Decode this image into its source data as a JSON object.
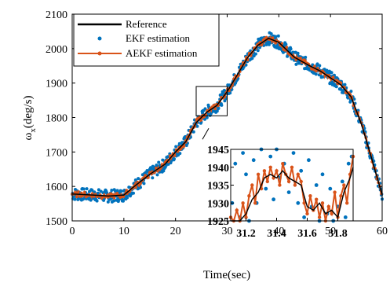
{
  "chart_data": [
    {
      "type": "line",
      "role": "main",
      "xlabel": "Time(sec)",
      "ylabel_symbol": "ω",
      "ylabel_subscript": "x",
      "ylabel_unit": "(deg/s)",
      "xlim": [
        0,
        60
      ],
      "ylim": [
        1500,
        2100
      ],
      "xticks": [
        0,
        10,
        20,
        30,
        40,
        50,
        60
      ],
      "yticks": [
        1500,
        1600,
        1700,
        1800,
        1900,
        2000,
        2100
      ],
      "xtick_labels": [
        "0",
        "10",
        "20",
        "30",
        "40",
        "50",
        "60"
      ],
      "ytick_labels": [
        "1500",
        "1600",
        "1700",
        "1800",
        "1900",
        "2000",
        "2100"
      ],
      "grid": false,
      "legend_position": "top-left",
      "zoom_box": {
        "x": [
          24,
          30
        ],
        "y": [
          1805,
          1890
        ]
      },
      "series": [
        {
          "name": "Reference",
          "style": "line",
          "color": "#000000",
          "x": [
            0,
            4,
            7,
            10,
            12,
            15,
            18,
            20,
            22,
            24,
            26,
            28,
            30,
            32,
            34,
            36,
            38,
            40,
            43,
            46,
            48,
            50,
            52,
            54,
            56,
            58,
            60
          ],
          "y": [
            1578,
            1575,
            1572,
            1575,
            1600,
            1635,
            1665,
            1700,
            1730,
            1785,
            1815,
            1835,
            1875,
            1925,
            1975,
            2010,
            2030,
            2018,
            1975,
            1950,
            1935,
            1915,
            1895,
            1860,
            1780,
            1680,
            1575
          ]
        },
        {
          "name": "EKF estimation",
          "style": "markers",
          "color": "#0072BD",
          "x": [
            0,
            4,
            7,
            10,
            12,
            15,
            18,
            20,
            22,
            24,
            26,
            28,
            30,
            32,
            34,
            36,
            38,
            40,
            43,
            46,
            48,
            50,
            52,
            54,
            56,
            58,
            60
          ],
          "y": [
            1578,
            1575,
            1572,
            1575,
            1600,
            1635,
            1665,
            1700,
            1730,
            1785,
            1815,
            1835,
            1875,
            1925,
            1975,
            2010,
            2030,
            2018,
            1975,
            1950,
            1935,
            1915,
            1895,
            1860,
            1780,
            1680,
            1575
          ],
          "noise": 18
        },
        {
          "name": "AEKF estimation",
          "style": "line-markers",
          "color": "#D95319",
          "x": [
            0,
            4,
            7,
            10,
            12,
            15,
            18,
            20,
            22,
            24,
            26,
            28,
            30,
            32,
            34,
            36,
            38,
            40,
            43,
            46,
            48,
            50,
            52,
            54,
            56,
            58,
            60
          ],
          "y": [
            1578,
            1575,
            1572,
            1575,
            1600,
            1635,
            1665,
            1700,
            1730,
            1785,
            1815,
            1835,
            1875,
            1925,
            1975,
            2010,
            2030,
            2018,
            1975,
            1950,
            1935,
            1915,
            1895,
            1860,
            1780,
            1680,
            1575
          ],
          "noise": 8
        }
      ]
    },
    {
      "type": "line",
      "role": "inset",
      "xlim": [
        31.1,
        31.9
      ],
      "ylim": [
        1925,
        1945
      ],
      "xticks": [
        31.2,
        31.4,
        31.6,
        31.8
      ],
      "yticks": [
        1925,
        1930,
        1935,
        1940,
        1945
      ],
      "xtick_labels": [
        "31.2",
        "31.4",
        "31.6",
        "31.8"
      ],
      "ytick_labels": [
        "1925",
        "1930",
        "1935",
        "1940",
        "1945"
      ],
      "series": [
        {
          "name": "Reference",
          "x": [
            31.1,
            31.16,
            31.2,
            31.24,
            31.28,
            31.32,
            31.36,
            31.4,
            31.44,
            31.48,
            31.52,
            31.56,
            31.6,
            31.64,
            31.68,
            31.72,
            31.76,
            31.8,
            31.84,
            31.88,
            31.9
          ],
          "y": [
            1925,
            1925,
            1927,
            1931,
            1933,
            1937,
            1938,
            1937,
            1939,
            1937,
            1936,
            1935,
            1929,
            1928,
            1930,
            1927,
            1928,
            1926,
            1933,
            1937,
            1940
          ]
        },
        {
          "name": "EKF estimation",
          "x": [
            31.11,
            31.13,
            31.16,
            31.18,
            31.2,
            31.22,
            31.25,
            31.27,
            31.3,
            31.33,
            31.36,
            31.38,
            31.4,
            31.42,
            31.45,
            31.48,
            31.51,
            31.54,
            31.56,
            31.58,
            31.61,
            31.63,
            31.66,
            31.68,
            31.7,
            31.73,
            31.75,
            31.77,
            31.8,
            31.83,
            31.85,
            31.87,
            31.89
          ],
          "y": [
            1930,
            1941,
            1926,
            1944,
            1938,
            1925,
            1942,
            1930,
            1945,
            1934,
            1943,
            1931,
            1945,
            1937,
            1941,
            1933,
            1944,
            1930,
            1939,
            1926,
            1942,
            1929,
            1935,
            1925,
            1938,
            1927,
            1934,
            1925,
            1929,
            1936,
            1926,
            1941,
            1943
          ]
        },
        {
          "name": "AEKF estimation",
          "x": [
            31.1,
            31.12,
            31.14,
            31.16,
            31.18,
            31.2,
            31.22,
            31.24,
            31.26,
            31.28,
            31.3,
            31.32,
            31.34,
            31.36,
            31.38,
            31.4,
            31.42,
            31.44,
            31.46,
            31.48,
            31.5,
            31.52,
            31.54,
            31.56,
            31.58,
            31.6,
            31.62,
            31.64,
            31.66,
            31.68,
            31.7,
            31.72,
            31.74,
            31.76,
            31.78,
            31.8,
            31.82,
            31.84,
            31.86,
            31.88,
            31.9
          ],
          "y": [
            1926,
            1925,
            1928,
            1925,
            1930,
            1926,
            1932,
            1935,
            1930,
            1938,
            1934,
            1939,
            1936,
            1940,
            1937,
            1939,
            1935,
            1941,
            1938,
            1936,
            1940,
            1935,
            1938,
            1936,
            1930,
            1927,
            1932,
            1928,
            1931,
            1926,
            1930,
            1925,
            1929,
            1927,
            1933,
            1926,
            1932,
            1935,
            1930,
            1938,
            1943
          ]
        }
      ]
    }
  ]
}
